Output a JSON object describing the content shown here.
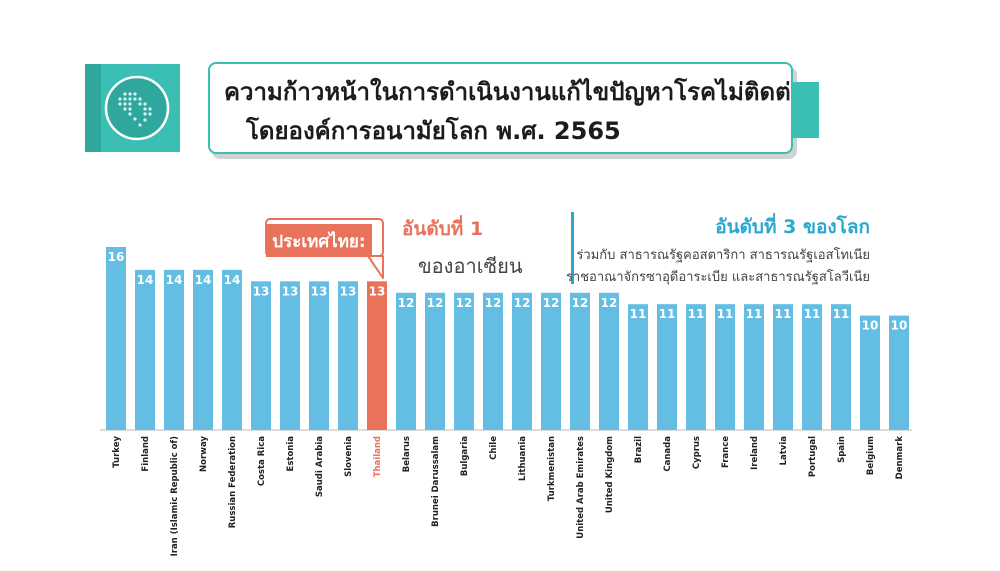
{
  "header": {
    "title_line1": "ความก้าวหน้าในการดำเนินงานแก้ไขปัญหาโรคไม่ติดต่อ",
    "title_line2": "โดยองค์การอนามัยโลก พ.ศ. 2565",
    "icon": "globe-icon"
  },
  "callouts": {
    "thailand_tag": "ประเทศไทย:",
    "thailand_rank": "อันดับที่ 1",
    "thailand_rank_sub": "ของอาเซียน",
    "world_rank": "อันดับที่ 3 ของโลก",
    "world_rank_l1": "ร่วมกับ สาธารณรัฐคอสตาริกา สาธารณรัฐเอสโทเนีย",
    "world_rank_l2": "ราชอาณาจักรซาอุดีอาระเบีย และสาธารณรัฐสโลวีเนีย"
  },
  "colors": {
    "bar": "#64bde3",
    "highlight_bar": "#e9725a",
    "accent": "#3bbfb4",
    "world_rank": "#2aa8cf"
  },
  "chart_data": {
    "type": "bar",
    "categories": [
      "Turkey",
      "Finland",
      "Iran (Islamic Republic of)",
      "Norway",
      "Russian Federation",
      "Costa Rica",
      "Estonia",
      "Saudi Arabia",
      "Slovenia",
      "Thailand",
      "Belarus",
      "Brunei Darussalam",
      "Bulgaria",
      "Chile",
      "Lithuania",
      "Turkmenistan",
      "United Arab Emirates",
      "United Kingdom",
      "Brazil",
      "Canada",
      "Cyprus",
      "France",
      "Ireland",
      "Latvia",
      "Portugal",
      "Spain",
      "Belgium",
      "Denmark"
    ],
    "values": [
      16,
      14,
      14,
      14,
      14,
      13,
      13,
      13,
      13,
      13,
      12,
      12,
      12,
      12,
      12,
      12,
      12,
      12,
      11,
      11,
      11,
      11,
      11,
      11,
      11,
      11,
      10,
      10
    ],
    "highlight": "Thailand",
    "ylim": [
      0,
      16
    ]
  }
}
